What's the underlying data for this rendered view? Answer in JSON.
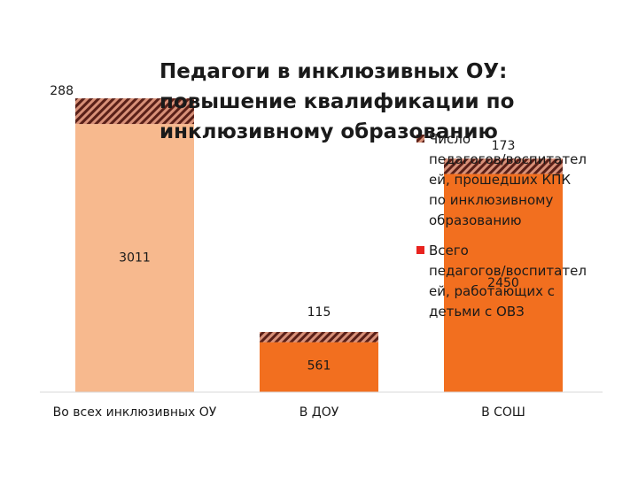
{
  "chart_data": {
    "type": "bar",
    "stacked": true,
    "title": "Педагоги в инклюзивных ОУ: повышение квалификации по инклюзивному образованию",
    "title_lines": [
      "Педагоги в инклюзивных ОУ:",
      "повышение квалификации по",
      "инклюзивному образованию"
    ],
    "categories": [
      "Во всех инклюзивных ОУ",
      "В ДОУ",
      "В СОШ"
    ],
    "series": [
      {
        "name": "Всего педагогов/воспитателей, работающих с детьми с ОВЗ",
        "legend_lines": [
          "Всего",
          "педагогов/воспитател",
          "ей, работающих с",
          "детьми с ОВЗ"
        ],
        "values": [
          3011,
          561,
          2450
        ],
        "value_labels": [
          "3011",
          "561",
          "2450"
        ],
        "color": "#f7b98e",
        "colors": [
          "#f7b98e",
          "#f26f1f",
          "#f26f1f"
        ],
        "legend_color": "#e8231f"
      },
      {
        "name": "Число педагогов/воспитателей, прошедших КПК по инклюзивному образованию",
        "legend_lines": [
          "Число",
          "педагогов/воспитател",
          "ей, прошедших КПК",
          "по инклюзивному",
          "образованию"
        ],
        "values": [
          288,
          115,
          173
        ],
        "value_labels": [
          "288",
          "115",
          "173"
        ],
        "pattern": "diagonal-hatch",
        "color": "#7a2a20"
      }
    ],
    "legend_position": "right",
    "grid": false
  }
}
